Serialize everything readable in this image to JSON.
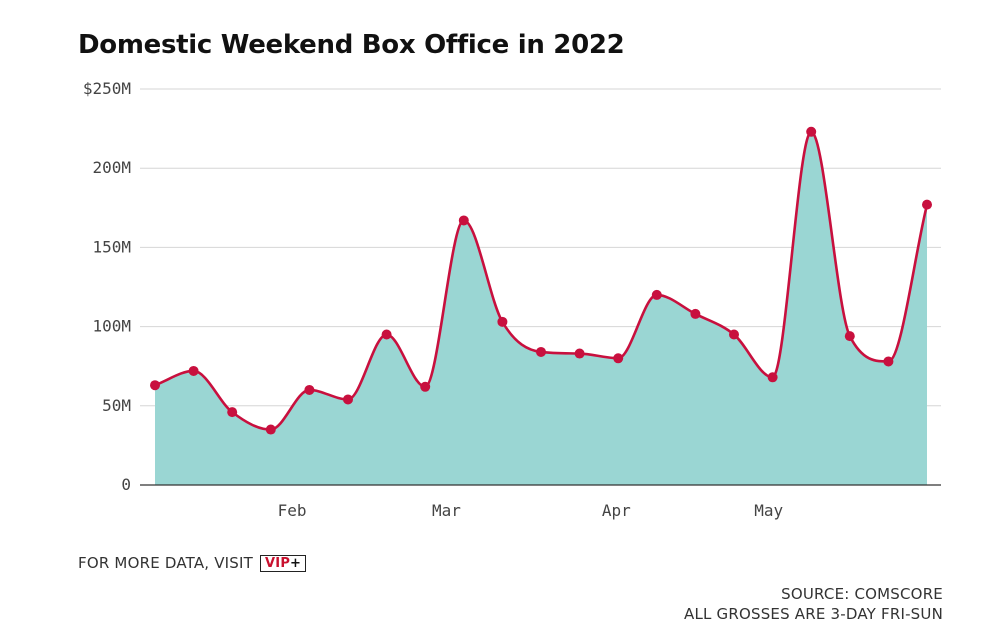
{
  "chart_data": {
    "type": "area",
    "title": "Domestic Weekend Box Office in 2022",
    "ylim": [
      0,
      250
    ],
    "y_ticks": [
      {
        "value": 0,
        "label": "0"
      },
      {
        "value": 50,
        "label": "50M"
      },
      {
        "value": 100,
        "label": "100M"
      },
      {
        "value": 150,
        "label": "150M"
      },
      {
        "value": 200,
        "label": "200M"
      },
      {
        "value": 250,
        "label": "$250M"
      }
    ],
    "x_ticks": [
      {
        "index": 3.55,
        "label": "Feb"
      },
      {
        "index": 7.55,
        "label": "Mar"
      },
      {
        "index": 11.95,
        "label": "Apr"
      },
      {
        "index": 15.9,
        "label": "May"
      }
    ],
    "values": [
      63,
      72,
      46,
      35,
      60,
      54,
      95,
      62,
      167,
      103,
      84,
      83,
      80,
      120,
      108,
      95,
      68,
      223,
      94,
      78,
      177
    ],
    "line_color": "#c8103e",
    "fill_color": "#9ad6d3",
    "grid": true
  },
  "footer": {
    "more_data": "FOR MORE DATA, VISIT",
    "vip_text": "VIP",
    "vip_plus": "+",
    "source": "SOURCE: COMSCORE",
    "note": "ALL GROSSES ARE 3-DAY FRI-SUN"
  }
}
